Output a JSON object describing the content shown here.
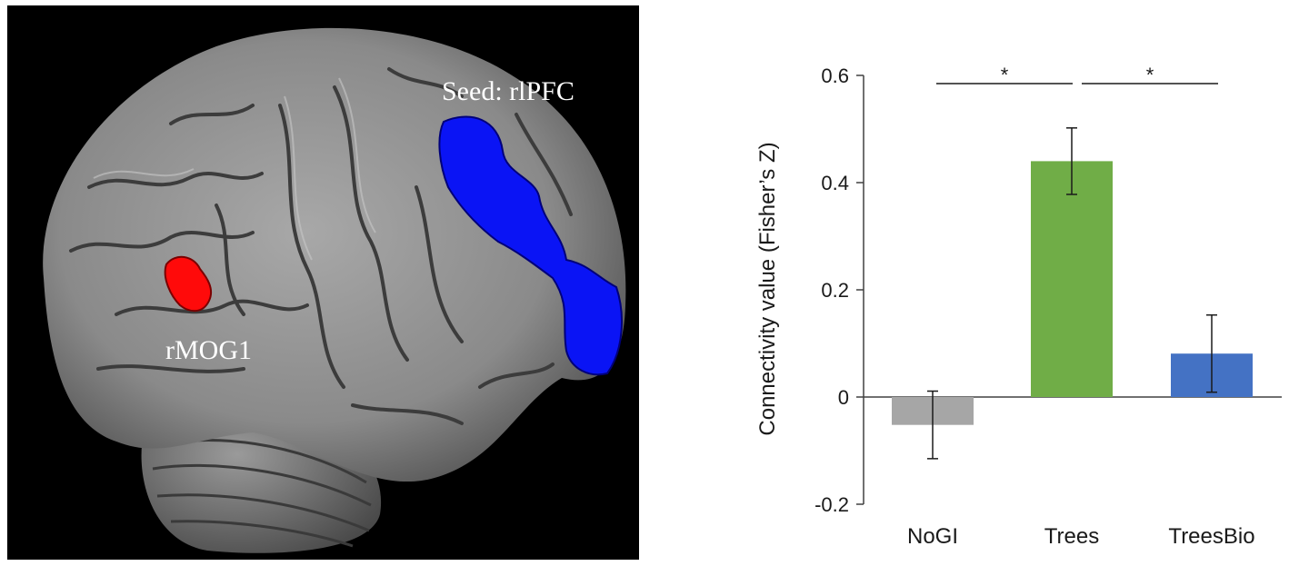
{
  "brain": {
    "seed_label": "Seed: rlPFC",
    "region_label": "rMOG1",
    "colors": {
      "background": "#000000",
      "cortex": "#8e8e8e",
      "seed": "#0a14f5",
      "region": "#ff0a0a"
    }
  },
  "chart_data": {
    "type": "bar",
    "categories": [
      "NoGI",
      "Trees",
      "TreesBio"
    ],
    "values": [
      -0.052,
      0.44,
      0.081
    ],
    "errors": [
      0.063,
      0.062,
      0.072
    ],
    "colors": [
      "#a6a6a6",
      "#70ad47",
      "#4472c4"
    ],
    "ylabel": "Connectivity value (Fisher’s Z)",
    "ylim": [
      -0.2,
      0.6
    ],
    "yticks": [
      0.6,
      0.4,
      0.2,
      0,
      -0.2
    ],
    "ytick_labels": [
      "0.6",
      "0.4",
      "0.2",
      "0",
      "-0.2"
    ],
    "significance": [
      {
        "from": "NoGI",
        "to": "Trees",
        "label": "*"
      },
      {
        "from": "Trees",
        "to": "TreesBio",
        "label": "*"
      }
    ],
    "grid": false
  }
}
